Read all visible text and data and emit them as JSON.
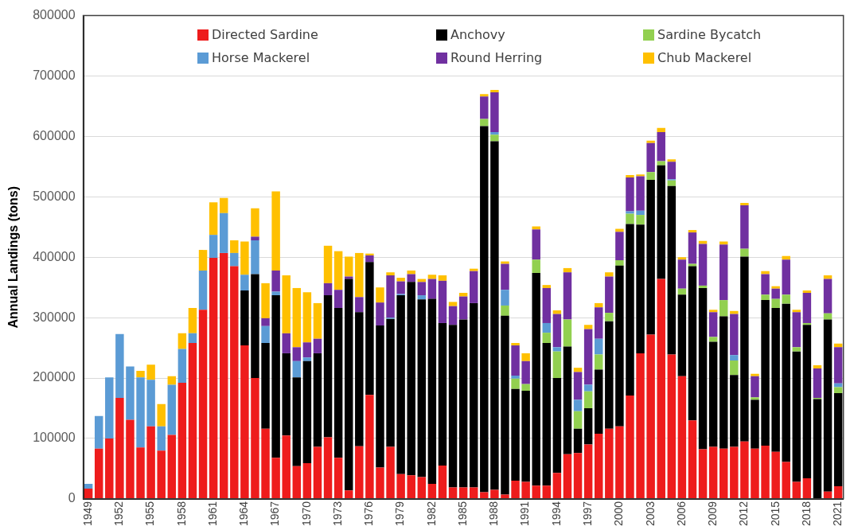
{
  "chart_data": {
    "type": "bar",
    "stacked": true,
    "ylabel": "Annual Landings (tons)",
    "categories": [
      "1949",
      null,
      null,
      "1952",
      null,
      null,
      "1955",
      null,
      null,
      "1958",
      null,
      null,
      "1961",
      null,
      null,
      "1964",
      null,
      null,
      "1967",
      null,
      null,
      "1970",
      null,
      null,
      "1973",
      null,
      null,
      "1976",
      null,
      null,
      "1979",
      null,
      null,
      "1982",
      null,
      null,
      "1985",
      null,
      null,
      "1988",
      null,
      null,
      "1991",
      null,
      null,
      "1994",
      null,
      null,
      "1997",
      null,
      null,
      "2000",
      null,
      null,
      "2003",
      null,
      null,
      "2006",
      null,
      null,
      "2009",
      null,
      null,
      "2012",
      null,
      null,
      "2015",
      null,
      null,
      "2018",
      null,
      null,
      "2021"
    ],
    "series": [
      {
        "name": "Directed Sardine",
        "color": "#ee1c1c",
        "values": [
          17000,
          83000,
          100000,
          167000,
          131000,
          85000,
          120000,
          80000,
          106000,
          192000,
          258000,
          313000,
          399000,
          407000,
          385000,
          254000,
          200000,
          116000,
          68000,
          105000,
          54000,
          59000,
          86000,
          102000,
          68000,
          14000,
          87000,
          172000,
          52000,
          86000,
          41000,
          39000,
          36000,
          25000,
          55000,
          19000,
          19000,
          19000,
          11000,
          15000,
          7000,
          30000,
          28000,
          22000,
          22000,
          43000,
          74000,
          76000,
          90000,
          108000,
          116000,
          120000,
          171000,
          241000,
          272000,
          364000,
          239000,
          203000,
          130000,
          82000,
          86000,
          83000,
          86000,
          95000,
          83000,
          88000,
          78000,
          61000,
          28000,
          34000,
          0,
          12000,
          21000
        ]
      },
      {
        "name": "Anchovy",
        "color": "#000000",
        "values": [
          0,
          0,
          0,
          0,
          0,
          0,
          0,
          0,
          0,
          0,
          0,
          0,
          0,
          0,
          0,
          91000,
          172000,
          142000,
          269000,
          136000,
          147000,
          169000,
          155000,
          235000,
          248000,
          350000,
          222000,
          220000,
          235000,
          212000,
          296000,
          320000,
          294000,
          306000,
          236000,
          269000,
          278000,
          305000,
          606000,
          577000,
          296000,
          152000,
          151000,
          352000,
          236000,
          157000,
          178000,
          40000,
          60000,
          106000,
          178000,
          266000,
          284000,
          213000,
          256000,
          188000,
          279000,
          135000,
          255000,
          267000,
          174000,
          219000,
          119000,
          306000,
          81000,
          241000,
          238000,
          262000,
          216000,
          254000,
          165000,
          285000,
          154000
        ]
      },
      {
        "name": "Sardine Bycatch",
        "color": "#92d050",
        "values": [
          0,
          0,
          0,
          0,
          0,
          0,
          0,
          0,
          0,
          0,
          0,
          0,
          0,
          0,
          0,
          0,
          0,
          0,
          0,
          0,
          0,
          0,
          0,
          0,
          0,
          0,
          0,
          0,
          0,
          0,
          0,
          0,
          0,
          0,
          0,
          0,
          0,
          0,
          12000,
          11000,
          17000,
          17000,
          11000,
          22000,
          17000,
          44000,
          45000,
          29000,
          28000,
          25000,
          14000,
          9000,
          17000,
          16000,
          13000,
          7000,
          9000,
          10000,
          4000,
          4000,
          8000,
          27000,
          24000,
          13000,
          4000,
          9000,
          15000,
          15000,
          7000,
          3000,
          2000,
          10000,
          10000
        ]
      },
      {
        "name": "Horse Mackerel",
        "color": "#5b9bd5",
        "values": [
          8000,
          54000,
          101000,
          106000,
          88000,
          116000,
          77000,
          40000,
          83000,
          56000,
          16000,
          65000,
          38000,
          66000,
          22000,
          26000,
          56000,
          28000,
          6000,
          0,
          27000,
          6000,
          0,
          0,
          0,
          0,
          0,
          0,
          0,
          2000,
          2000,
          0,
          7000,
          0,
          0,
          0,
          0,
          0,
          0,
          4000,
          26000,
          5000,
          0,
          0,
          16000,
          7000,
          0,
          19000,
          11000,
          26000,
          0,
          0,
          4000,
          7000,
          0,
          0,
          2000,
          0,
          0,
          0,
          0,
          0,
          9000,
          0,
          0,
          0,
          0,
          0,
          0,
          0,
          0,
          0,
          6000
        ]
      },
      {
        "name": "Round Herring",
        "color": "#7030a0",
        "values": [
          0,
          0,
          0,
          0,
          0,
          0,
          0,
          0,
          0,
          0,
          0,
          0,
          0,
          0,
          0,
          0,
          6000,
          13000,
          35000,
          33000,
          23000,
          25000,
          24000,
          20000,
          30000,
          4000,
          25000,
          11000,
          38000,
          70000,
          21000,
          13000,
          22000,
          33000,
          70000,
          31000,
          38000,
          53000,
          37000,
          66000,
          43000,
          50000,
          38000,
          50000,
          58000,
          55000,
          78000,
          46000,
          92000,
          52000,
          60000,
          47000,
          56000,
          57000,
          48000,
          48000,
          29000,
          48000,
          52000,
          69000,
          41000,
          92000,
          68000,
          72000,
          35000,
          34000,
          17000,
          58000,
          58000,
          50000,
          49000,
          57000,
          60000
        ]
      },
      {
        "name": "Chub Mackerel",
        "color": "#ffc000",
        "values": [
          0,
          0,
          0,
          0,
          0,
          11000,
          25000,
          37000,
          14000,
          26000,
          42000,
          34000,
          54000,
          25000,
          21000,
          55000,
          47000,
          58000,
          131000,
          96000,
          98000,
          83000,
          59000,
          62000,
          64000,
          33000,
          73000,
          3000,
          25000,
          5000,
          6000,
          6000,
          5000,
          7000,
          9000,
          7000,
          6000,
          4000,
          4000,
          4000,
          4000,
          4000,
          13000,
          5000,
          5000,
          6000,
          7000,
          7000,
          7000,
          7000,
          7000,
          5000,
          4000,
          3000,
          4000,
          7000,
          4000,
          4000,
          4000,
          5000,
          4000,
          5000,
          5000,
          4000,
          4000,
          5000,
          4000,
          6000,
          4000,
          4000,
          5000,
          6000,
          6000
        ]
      }
    ],
    "ylim": [
      0,
      800000
    ],
    "yticks": [
      0,
      100000,
      200000,
      300000,
      400000,
      500000,
      600000,
      700000,
      800000
    ],
    "grid": "y",
    "legend": "top"
  }
}
